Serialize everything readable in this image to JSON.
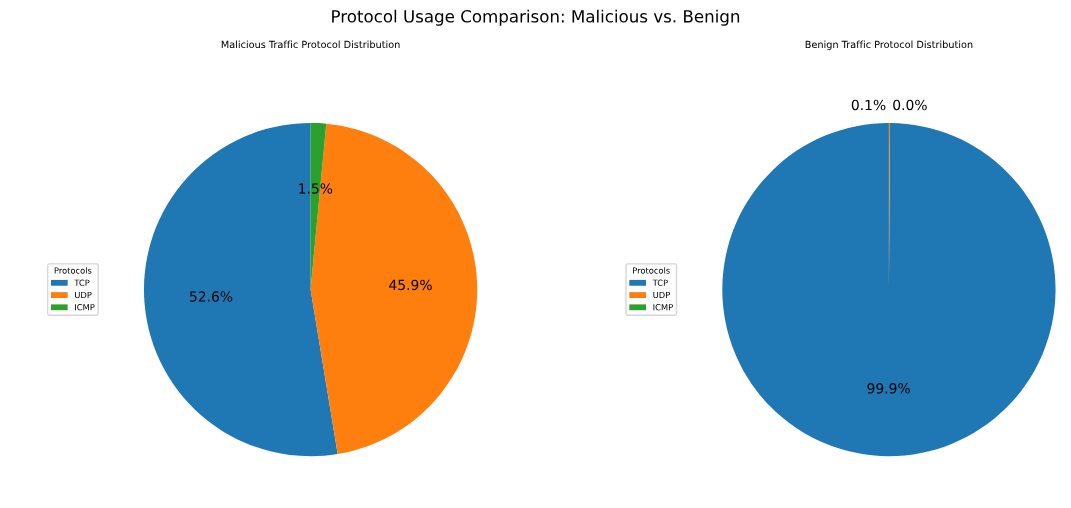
{
  "chart_data": [
    {
      "type": "pie",
      "title": "Malicious Traffic Protocol Distribution",
      "categories": [
        "TCP",
        "UDP",
        "ICMP"
      ],
      "values": [
        52.6,
        45.9,
        1.5
      ],
      "colors": [
        "#1f77b4",
        "#ff7f0e",
        "#2ca02c"
      ],
      "value_labels": [
        "52.6%",
        "45.9%",
        "1.5%"
      ],
      "legend": "left",
      "legend_title": "Protocols",
      "annotations": [
        "Protocol Usage Comparison: Malicious vs. Benign"
      ]
    },
    {
      "type": "pie",
      "title": "Benign Traffic Protocol Distribution",
      "categories": [
        "TCP",
        "UDP",
        "ICMP"
      ],
      "values": [
        99.9,
        0.1,
        0.0
      ],
      "colors": [
        "#1f77b4",
        "#ff7f0e",
        "#2ca02c"
      ],
      "value_labels": [
        "99.9%",
        "0.1%",
        "0.0%"
      ],
      "legend": "left",
      "legend_title": "Protocols"
    }
  ]
}
